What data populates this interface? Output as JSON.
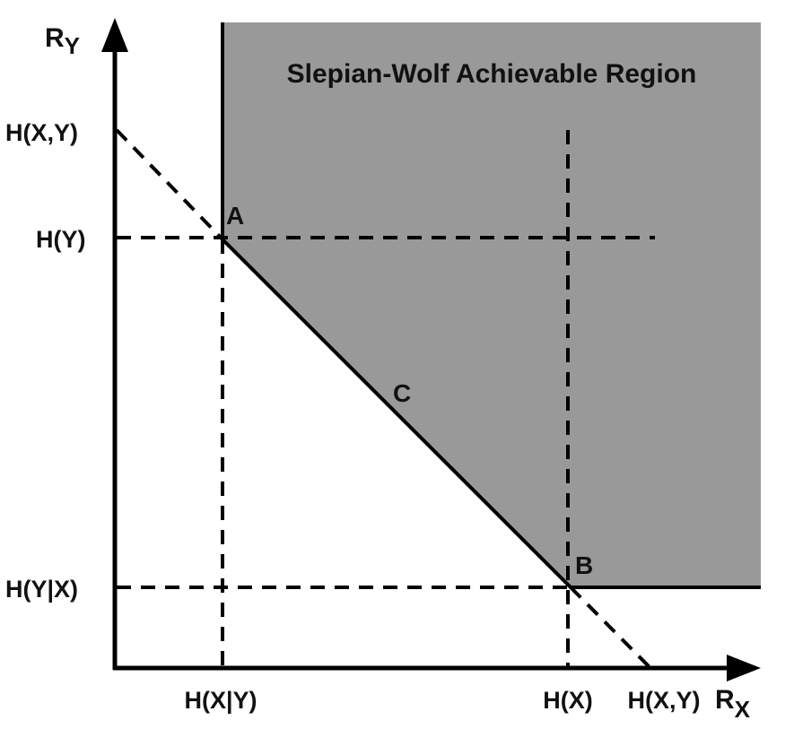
{
  "diagram": {
    "region_title": "Slepian-Wolf Achievable Region",
    "axes": {
      "x": {
        "main": "R",
        "sub": "X"
      },
      "y": {
        "main": "R",
        "sub": "Y"
      }
    },
    "y_ticks": [
      "H(X,Y)",
      "H(Y)",
      "H(Y|X)"
    ],
    "x_ticks": [
      "H(X|Y)",
      "H(X)",
      "H(X,Y)"
    ],
    "points": [
      "A",
      "B",
      "C"
    ],
    "colors": {
      "region_fill": "#999999",
      "stroke": "#000000",
      "text": "#111111",
      "background": "#ffffff"
    }
  }
}
